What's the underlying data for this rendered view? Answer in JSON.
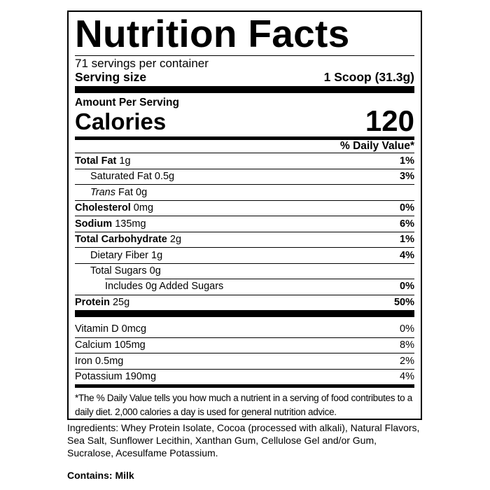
{
  "title": "Nutrition Facts",
  "servings_per_container": "71 servings per container",
  "serving_size": {
    "label": "Serving size",
    "value": "1 Scoop (31.3g)"
  },
  "amount_per_serving": "Amount Per Serving",
  "calories": {
    "label": "Calories",
    "value": "120"
  },
  "daily_value_header": "% Daily Value*",
  "nutrients": [
    {
      "name": "Total Fat",
      "amount": "1g",
      "dv": "1%"
    },
    {
      "name": "Saturated Fat",
      "amount": "0.5g",
      "dv": "3%"
    },
    {
      "name": "Trans",
      "name_suffix": "Fat",
      "amount": "0g",
      "dv": ""
    },
    {
      "name": "Cholesterol",
      "amount": "0mg",
      "dv": "0%"
    },
    {
      "name": "Sodium",
      "amount": "135mg",
      "dv": "6%"
    },
    {
      "name": "Total Carbohydrate",
      "amount": "2g",
      "dv": "1%"
    },
    {
      "name": "Dietary Fiber",
      "amount": "1g",
      "dv": "4%"
    },
    {
      "name": "Total Sugars",
      "amount": "0g",
      "dv": ""
    },
    {
      "name": "Includes 0g Added Sugars",
      "amount": "",
      "dv": "0%"
    },
    {
      "name": "Protein",
      "amount": "25g",
      "dv": "50%"
    }
  ],
  "vitamins": [
    {
      "name": "Vitamin D",
      "amount": "0mcg",
      "dv": "0%"
    },
    {
      "name": "Calcium",
      "amount": "105mg",
      "dv": "8%"
    },
    {
      "name": "Iron",
      "amount": "0.5mg",
      "dv": "2%"
    },
    {
      "name": "Potassium",
      "amount": "190mg",
      "dv": "4%"
    }
  ],
  "footnote": "*The % Daily Value tells you how much a nutrient in a serving of food contributes to a daily diet. 2,000 calories a day is used for general nutrition advice.",
  "ingredients": "Ingredients: Whey Protein Isolate, Cocoa (processed with alkali), Natural Flavors, Sea Salt, Sunflower Lecithin, Xanthan Gum, Cellulose Gel and/or Gum, Sucralose, Acesulfame Potassium.",
  "contains": "Contains: Milk"
}
